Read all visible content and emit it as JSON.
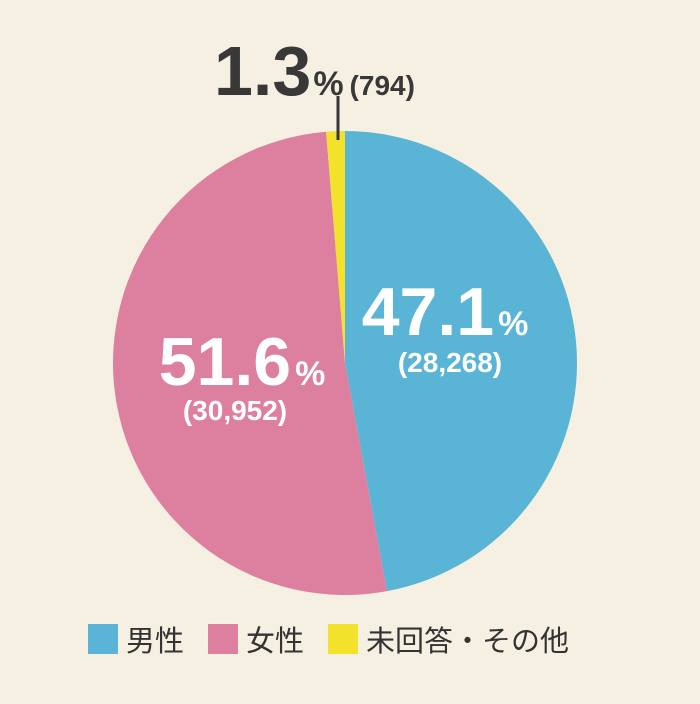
{
  "colors": {
    "background": "#f5f0e1",
    "male": "#5ab4d6",
    "female": "#dd809f",
    "other": "#f2e22c",
    "dark_text": "#383838",
    "light_text": "#ffffff"
  },
  "chart_data": {
    "type": "pie",
    "title": "",
    "start_angle_deg": 0,
    "direction": "clockwise",
    "slices": [
      {
        "name": "男性",
        "percent": 47.1,
        "count_label": "(28,268)",
        "pct_text": "47.1",
        "unit": "%",
        "color": "#5ab4d6"
      },
      {
        "name": "女性",
        "percent": 51.6,
        "count_label": "(30,952)",
        "pct_text": "51.6",
        "unit": "%",
        "color": "#dd809f"
      },
      {
        "name": "未回答・その他",
        "percent": 1.3,
        "count_label": "(794)",
        "pct_text": "1.3",
        "unit": "%",
        "color": "#f2e22c"
      }
    ],
    "legend": {
      "position": "bottom",
      "entries": [
        "男性",
        "女性",
        "未回答・その他"
      ]
    }
  }
}
